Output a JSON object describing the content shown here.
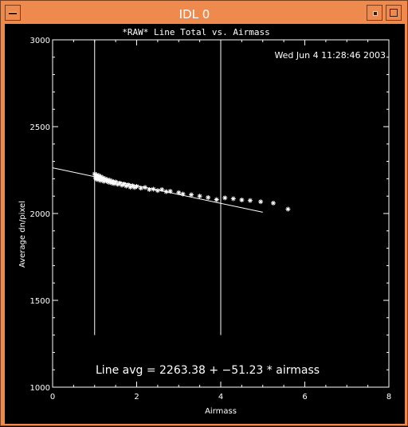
{
  "window": {
    "title": "IDL 0",
    "icons": {
      "menu": "window-menu-icon",
      "minimize": "minimize-icon",
      "maximize": "maximize-icon"
    }
  },
  "plot": {
    "timestamp": "Wed Jun  4 11:28:46 2003",
    "fit_label": "Line avg = 2263.38 + −51.23 * airmass"
  },
  "chart_data": {
    "type": "scatter",
    "title": "*RAW* Line Total vs. Airmass",
    "xlabel": "Airmass",
    "ylabel": "Average dn/pixel",
    "xlim": [
      0,
      8
    ],
    "ylim": [
      1000,
      3000
    ],
    "xticks": [
      0,
      2,
      4,
      6,
      8
    ],
    "yticks": [
      1000,
      1500,
      2000,
      2500,
      3000
    ],
    "grid": false,
    "marker": "asterisk",
    "color": "#ffffff",
    "background": "#000000",
    "fit": {
      "intercept": 2263.38,
      "slope": -51.23,
      "x_range": [
        0,
        5
      ]
    },
    "vlines": [
      {
        "x": 1.0,
        "y_range": [
          1300,
          3000
        ]
      },
      {
        "x": 4.0,
        "y_range": [
          1300,
          3000
        ]
      }
    ],
    "points": [
      [
        1.0,
        2228
      ],
      [
        1.02,
        2205
      ],
      [
        1.03,
        2215
      ],
      [
        1.04,
        2198
      ],
      [
        1.05,
        2222
      ],
      [
        1.06,
        2210
      ],
      [
        1.08,
        2195
      ],
      [
        1.1,
        2218
      ],
      [
        1.12,
        2202
      ],
      [
        1.14,
        2190
      ],
      [
        1.15,
        2212
      ],
      [
        1.18,
        2196
      ],
      [
        1.2,
        2205
      ],
      [
        1.22,
        2185
      ],
      [
        1.25,
        2200
      ],
      [
        1.28,
        2188
      ],
      [
        1.3,
        2195
      ],
      [
        1.33,
        2180
      ],
      [
        1.36,
        2192
      ],
      [
        1.4,
        2176
      ],
      [
        1.42,
        2186
      ],
      [
        1.46,
        2172
      ],
      [
        1.5,
        2182
      ],
      [
        1.55,
        2168
      ],
      [
        1.6,
        2175
      ],
      [
        1.65,
        2163
      ],
      [
        1.7,
        2170
      ],
      [
        1.75,
        2158
      ],
      [
        1.8,
        2165
      ],
      [
        1.85,
        2152
      ],
      [
        1.9,
        2160
      ],
      [
        1.95,
        2150
      ],
      [
        2.0,
        2156
      ],
      [
        2.1,
        2146
      ],
      [
        2.2,
        2150
      ],
      [
        2.3,
        2138
      ],
      [
        2.4,
        2140
      ],
      [
        2.5,
        2132
      ],
      [
        2.6,
        2138
      ],
      [
        2.7,
        2126
      ],
      [
        2.8,
        2128
      ],
      [
        3.0,
        2120
      ],
      [
        3.1,
        2112
      ],
      [
        3.3,
        2108
      ],
      [
        3.5,
        2100
      ],
      [
        3.7,
        2092
      ],
      [
        3.9,
        2080
      ],
      [
        4.1,
        2090
      ],
      [
        4.3,
        2085
      ],
      [
        4.5,
        2078
      ],
      [
        4.7,
        2075
      ],
      [
        4.95,
        2068
      ],
      [
        5.25,
        2060
      ],
      [
        5.6,
        2025
      ]
    ]
  }
}
